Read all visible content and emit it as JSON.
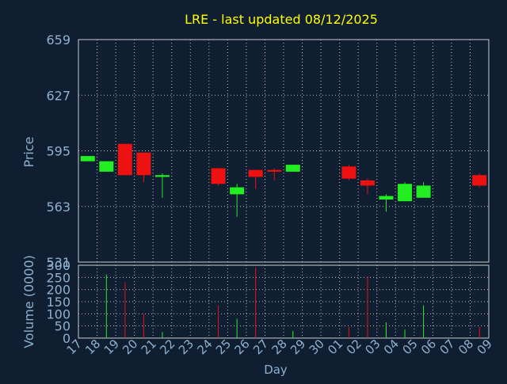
{
  "chart_data": {
    "type": "candlestick",
    "title": "LRE - last updated 08/12/2025",
    "xlabel": "Day",
    "price_panel": {
      "ylabel": "Price",
      "ylim": [
        531,
        659
      ],
      "yticks": [
        "659",
        "627",
        "595",
        "563",
        "531"
      ]
    },
    "volume_panel": {
      "ylabel": "Volume (0000)",
      "ylim": [
        0,
        300
      ],
      "yticks": [
        "300",
        "250",
        "200",
        "150",
        "100",
        "50",
        "0"
      ]
    },
    "x_tick_labels": [
      "17",
      "18",
      "19",
      "20",
      "21",
      "22",
      "23",
      "24",
      "25",
      "26",
      "27",
      "28",
      "29",
      "30",
      "01",
      "02",
      "03",
      "04",
      "05",
      "06",
      "07",
      "08",
      "09"
    ],
    "grid": true,
    "colors": {
      "up": "#22ee22",
      "down": "#ee1111",
      "title": "#ffff00",
      "axis_text": "#8fb0d0",
      "grid": "#b8c0c8",
      "background": "#0f1e30"
    },
    "candles": [
      {
        "day": "17",
        "open": 589,
        "high": 592,
        "low": 589,
        "close": 592,
        "volume": 0
      },
      {
        "day": "18",
        "open": 583,
        "high": 589,
        "low": 583,
        "close": 589,
        "volume": 262
      },
      {
        "day": "19",
        "open": 599,
        "high": 599,
        "low": 581,
        "close": 581,
        "volume": 230
      },
      {
        "day": "20",
        "open": 594,
        "high": 594,
        "low": 577,
        "close": 581,
        "volume": 100
      },
      {
        "day": "21",
        "open": 580,
        "high": 582,
        "low": 568,
        "close": 581,
        "volume": 25
      },
      {
        "day": "24",
        "open": 585,
        "high": 585,
        "low": 575,
        "close": 576,
        "volume": 135
      },
      {
        "day": "25",
        "open": 570,
        "high": 576,
        "low": 557,
        "close": 574,
        "volume": 80
      },
      {
        "day": "26",
        "open": 584,
        "high": 584,
        "low": 573,
        "close": 580,
        "volume": 290
      },
      {
        "day": "27",
        "open": 584,
        "high": 585,
        "low": 578,
        "close": 583,
        "volume": 0
      },
      {
        "day": "28",
        "open": 583,
        "high": 587,
        "low": 583,
        "close": 587,
        "volume": 30
      },
      {
        "day": "01",
        "open": 586,
        "high": 587,
        "low": 578,
        "close": 579,
        "volume": 45
      },
      {
        "day": "02",
        "open": 578,
        "high": 579,
        "low": 570,
        "close": 575,
        "volume": 255
      },
      {
        "day": "03",
        "open": 567,
        "high": 570,
        "low": 560,
        "close": 569,
        "volume": 65
      },
      {
        "day": "04",
        "open": 566,
        "high": 577,
        "low": 566,
        "close": 576,
        "volume": 35
      },
      {
        "day": "05",
        "open": 568,
        "high": 577,
        "low": 568,
        "close": 575,
        "volume": 135
      },
      {
        "day": "08",
        "open": 581,
        "high": 582,
        "low": 574,
        "close": 575,
        "volume": 45
      }
    ]
  }
}
